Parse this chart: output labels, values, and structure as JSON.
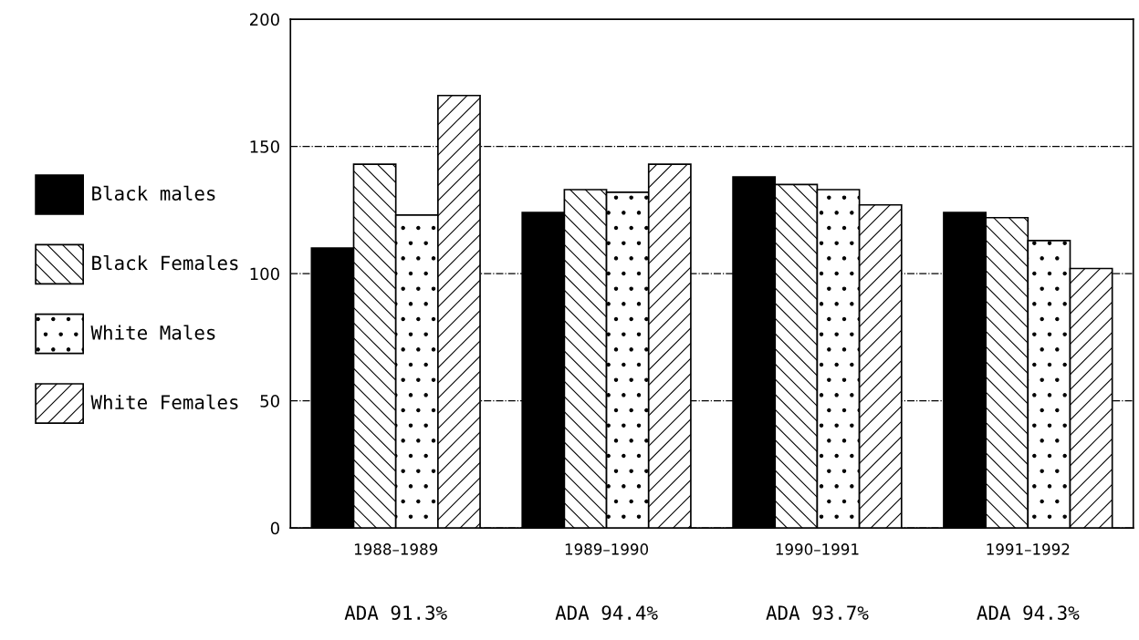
{
  "chart_data": {
    "type": "bar",
    "categories": [
      "1988–1989",
      "1989–1990",
      "1990–1991",
      "1991–1992"
    ],
    "series": [
      {
        "name": "Black males",
        "color": "#000000",
        "values": [
          110,
          124,
          138,
          124
        ]
      },
      {
        "name": "Black Females",
        "color": "#ffffff",
        "values": [
          143,
          133,
          135,
          122
        ]
      },
      {
        "name": "White Males",
        "color": "#ffffff",
        "values": [
          123,
          132,
          133,
          113
        ]
      },
      {
        "name": "White Females",
        "color": "#ffffff",
        "values": [
          170,
          143,
          127,
          102
        ]
      }
    ],
    "ylim": [
      0,
      200
    ],
    "yticks": [
      0,
      50,
      100,
      150,
      200
    ],
    "grid": "y",
    "legend": "left",
    "annotations": [
      "ADA 91.3%",
      "ADA 94.4%",
      "ADA 93.7%",
      "ADA 94.3%"
    ]
  }
}
